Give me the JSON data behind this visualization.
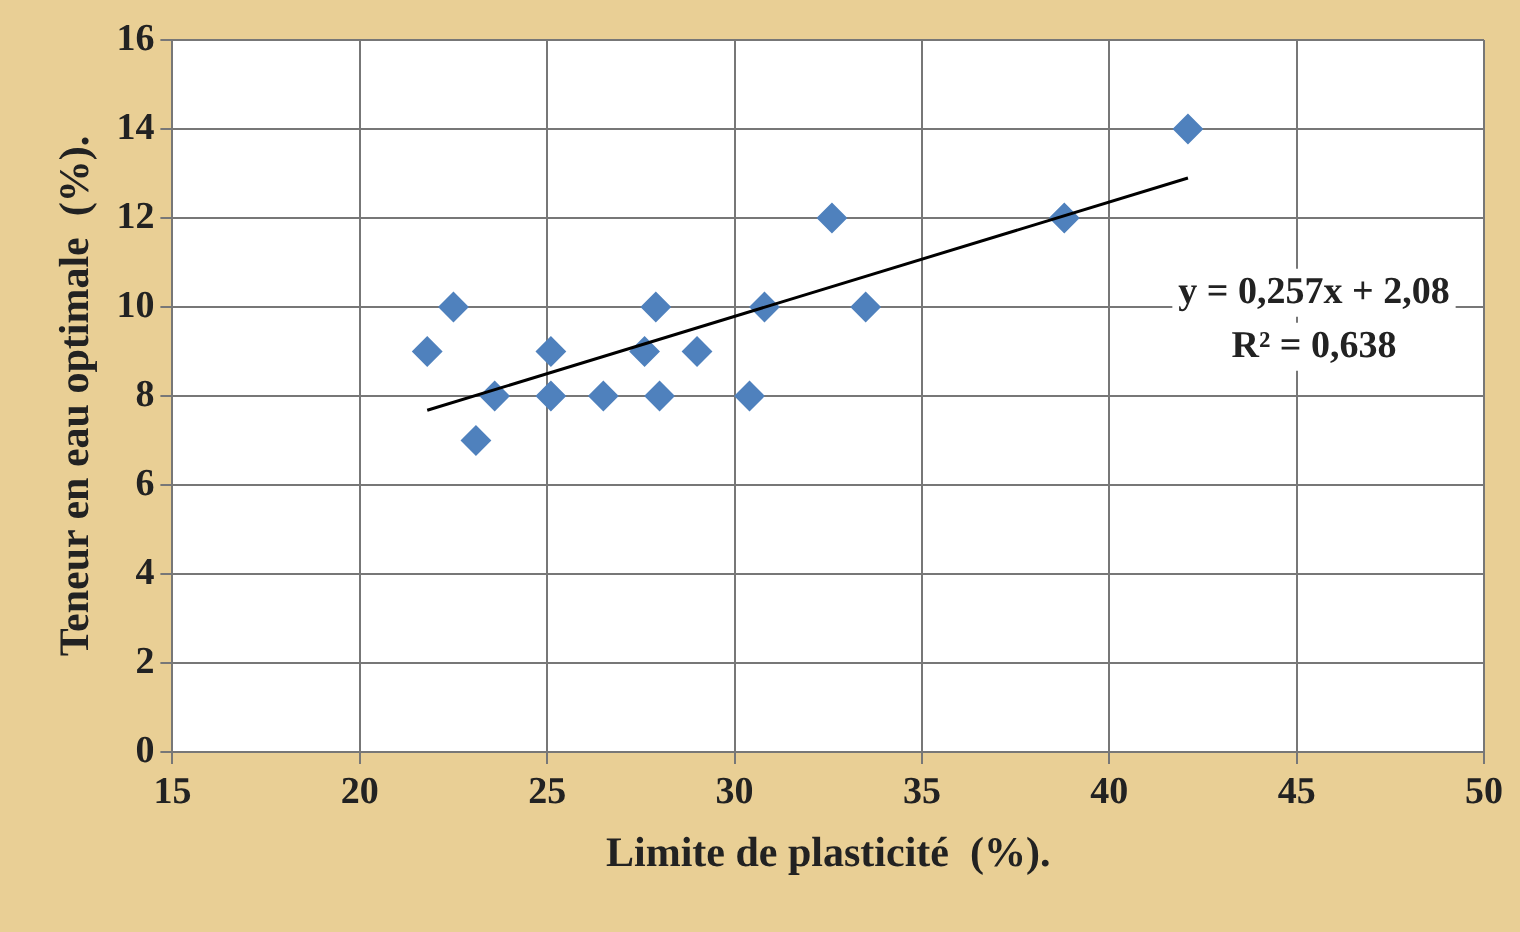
{
  "chart_data": {
    "type": "scatter",
    "xlabel": "Limite de plasticité  (%).",
    "ylabel": "Teneur en eau optimale  (%).",
    "xlim": [
      15,
      50
    ],
    "xticks": [
      15,
      20,
      25,
      30,
      35,
      40,
      45,
      50
    ],
    "ylim": [
      0,
      16
    ],
    "yticks": [
      0,
      2,
      4,
      6,
      8,
      10,
      12,
      14,
      16
    ],
    "grid": true,
    "legend": false,
    "marker": "diamond",
    "annotations": [
      "y = 0,257x + 2,08",
      "R² = 0,638"
    ],
    "series": [
      {
        "color": "#4f81bd",
        "x": [
          21.8,
          22.5,
          23.1,
          23.6,
          25.1,
          25.1,
          26.5,
          27.6,
          27.9,
          28.0,
          29.0,
          30.4,
          30.8,
          32.6,
          33.5,
          38.8,
          42.1
        ],
        "values": [
          9,
          10,
          7,
          8,
          9,
          8,
          8,
          9,
          10,
          8,
          9,
          8,
          10,
          12,
          10,
          12,
          14
        ]
      },
      {
        "type": "line",
        "color": "#000000",
        "marker": "none",
        "line_style": "solid",
        "x": [
          21.8,
          42.1
        ],
        "values": [
          7.68,
          12.9
        ]
      }
    ]
  }
}
